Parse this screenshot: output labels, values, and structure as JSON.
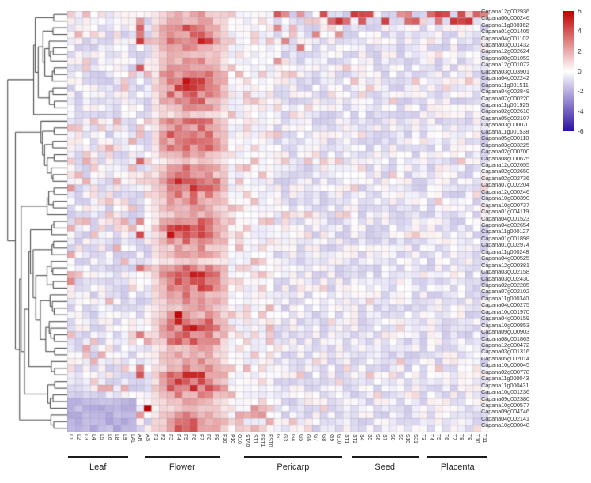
{
  "chart_data": {
    "type": "heatmap",
    "title": "",
    "rows": [
      "Capana12g002936",
      "Capana00g000246",
      "Capana11g000362",
      "Capana01g001405",
      "Capana04g001102",
      "Capana03g001432",
      "Capana12g002624",
      "Capana08g001059",
      "Capana12g001072",
      "Capana03g003901",
      "Capana04g002242",
      "Capana11g001511",
      "Capana04g002849",
      "Capana07g000220",
      "Capana11g001925",
      "Capana02g002618",
      "Capana05g002107",
      "Capana03g000070",
      "Capana11g001538",
      "Capana05g000110",
      "Capana03g003225",
      "Capana02g000700",
      "Capana08g000625",
      "Capana12g002655",
      "Capana02g002650",
      "Capana02g002736",
      "Capana07g002204",
      "Capana12g000246",
      "Capana10g000390",
      "Capana10g000737",
      "Capana01g004119",
      "Capana04g001523",
      "Capana04g002654",
      "Capana11g000127",
      "Capana01g001898",
      "Capana01g002974",
      "Capana11g000248",
      "Capana04g000525",
      "Capana12g000381",
      "Capana03g002158",
      "Capana03g002430",
      "Capana02g002285",
      "Capana07g002102",
      "Capana11g000340",
      "Capana04g000275",
      "Capana10g001970",
      "Capana04g000159",
      "Capana10g000853",
      "Capana09g000903",
      "Capana08g001863",
      "Capana12g000472",
      "Capana03g001316",
      "Capana05g002014",
      "Capana10g000045",
      "Capana02g000778",
      "Capana11g000043",
      "Capana11g000431",
      "Capana10g001236",
      "Capana09g002380",
      "Capana10g000577",
      "Capana09g004746",
      "Capana04g002141",
      "Capana10g000048"
    ],
    "columns": [
      "L1",
      "L2",
      "L3",
      "L4",
      "L5",
      "L6",
      "L8",
      "L9",
      "LAL",
      "AR",
      "AS",
      "F1",
      "F2",
      "F3",
      "F4",
      "F5",
      "F6",
      "F7",
      "F8",
      "F9",
      "F10",
      "P10",
      "O10",
      "STA0",
      "ST1",
      "FST1",
      "FST0",
      "G1",
      "G3",
      "G4",
      "G5",
      "G6",
      "G7",
      "G8",
      "G9",
      "G10",
      "ST1",
      "ST2",
      "S4",
      "S5",
      "S6",
      "S7",
      "S8",
      "S9",
      "S10",
      "S31",
      "T3",
      "T4",
      "T5",
      "T6",
      "T7",
      "T8",
      "T9",
      "T10",
      "T11"
    ],
    "column_groups": [
      {
        "label": "Leaf",
        "start": 0,
        "end": 7
      },
      {
        "label": "Flower",
        "start": 10,
        "end": 19
      },
      {
        "label": "Pericarp",
        "start": 23,
        "end": 35
      },
      {
        "label": "Seed",
        "start": 37,
        "end": 45
      },
      {
        "label": "Placenta",
        "start": 47,
        "end": 54
      }
    ],
    "colorbar": {
      "ticks": [
        6,
        4,
        2,
        0,
        -2,
        -4,
        -6
      ],
      "range": [
        -6,
        6
      ],
      "max_color": "#c00000",
      "mid_color": "#ffffff",
      "min_color": "#2b10a0"
    },
    "colors": {
      "grid_line": "#8585aa",
      "dendrogram": "#4d4d4d",
      "label_text": "#3c3c3c"
    },
    "pattern": {
      "baseline": [
        -0.75,
        0.35
      ],
      "flower_band_cols": [
        11,
        20
      ],
      "flower_col_heat": [
        0.7,
        1.6,
        2.2,
        2.6,
        2.9,
        3.0,
        2.9,
        2.5,
        1.8,
        1.2
      ],
      "hotspots": [
        {
          "row": 59,
          "col": 10,
          "value": 6
        },
        {
          "row": 0,
          "col": 51,
          "value": 4
        },
        {
          "row": 0,
          "col": 53,
          "value": 3.5
        },
        {
          "row": 1,
          "col": 48,
          "value": 3
        },
        {
          "row": 0,
          "col": 33,
          "value": 4
        },
        {
          "row": 1,
          "col": 36,
          "value": 3.2
        },
        {
          "row": 2,
          "col": 9,
          "value": 3.5
        },
        {
          "row": 4,
          "col": 9,
          "value": 4.5
        },
        {
          "row": 26,
          "col": 0,
          "value": 2.2
        },
        {
          "row": 40,
          "col": 0,
          "value": 2.5
        },
        {
          "row": 10,
          "col": 15,
          "value": 5.5
        },
        {
          "row": 11,
          "col": 15,
          "value": 5.0
        },
        {
          "row": 33,
          "col": 13,
          "value": 5.5
        },
        {
          "row": 45,
          "col": 14,
          "value": 5.8
        },
        {
          "row": 46,
          "col": 14,
          "value": 5.2
        }
      ]
    }
  }
}
